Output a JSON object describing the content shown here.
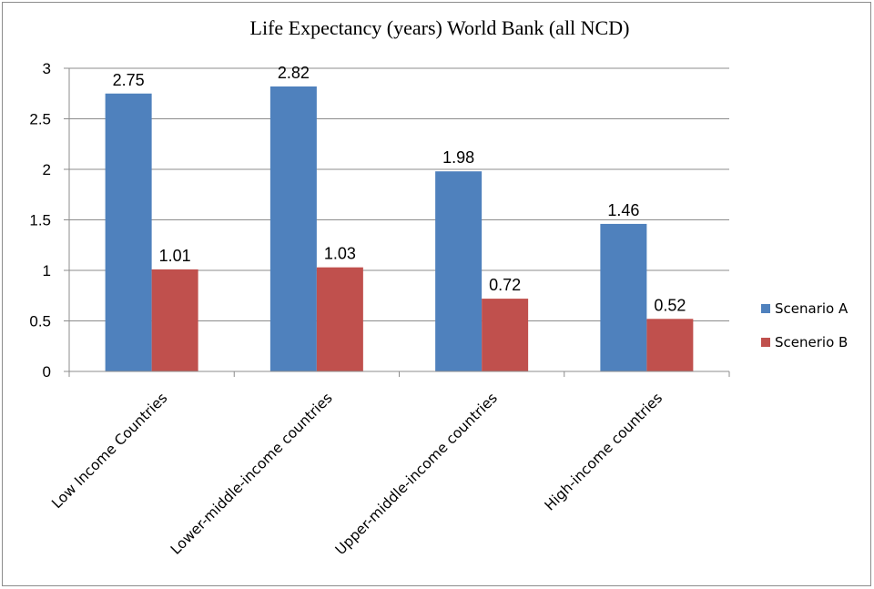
{
  "chart_data": {
    "type": "bar",
    "title": "Life Expectancy (years) World Bank (all NCD)",
    "categories": [
      "Low Income Countries",
      "Lower-middle-income countries",
      "Upper-middle-income countries",
      "High-income countries"
    ],
    "series": [
      {
        "name": "Scenario A",
        "values": [
          2.75,
          2.82,
          1.98,
          1.46
        ],
        "color": "#4f81bd"
      },
      {
        "name": "Scenerio B",
        "values": [
          1.01,
          1.03,
          0.72,
          0.52
        ],
        "color": "#c0504d"
      }
    ],
    "ylim": [
      0,
      3
    ],
    "yticks": [
      0,
      0.5,
      1,
      1.5,
      2,
      2.5,
      3
    ],
    "grid": true,
    "legend": "right",
    "data_labels": true
  }
}
